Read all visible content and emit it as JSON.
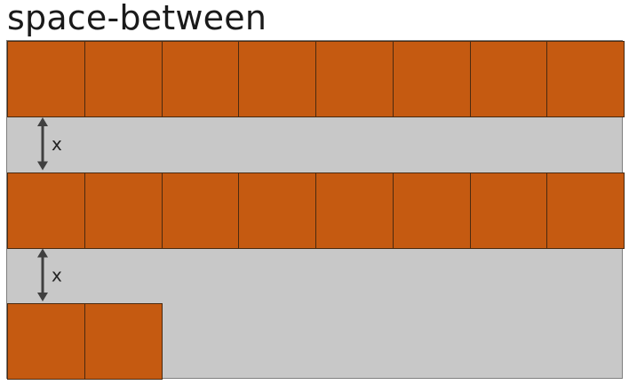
{
  "title": "space-between",
  "colors": {
    "container_bg": "#c8c8c8",
    "item_fill": "#c55a11",
    "item_border": "#4a2a10",
    "arrow": "#404040"
  },
  "layout_demo": {
    "justify_content": "space-between",
    "items_per_row": 8,
    "rows": [
      {
        "item_count": 8
      },
      {
        "item_count": 8
      },
      {
        "item_count": 2
      }
    ],
    "gap_label": "x",
    "gaps": [
      {
        "label": "x"
      },
      {
        "label": "x"
      }
    ]
  }
}
